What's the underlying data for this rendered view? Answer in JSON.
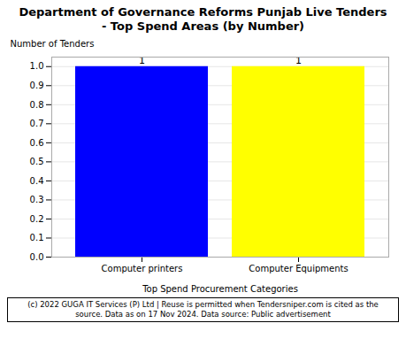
{
  "chart_data": {
    "type": "bar",
    "title": "Department of Governance Reforms Punjab Live Tenders\n - Top Spend Areas (by Number)",
    "categories": [
      "Computer printers",
      "Computer Equipments"
    ],
    "values": [
      1,
      1
    ],
    "colors": [
      "#0000FF",
      "#FFFF00"
    ],
    "xlabel": "Top Spend Procurement Categories",
    "ylabel": "Number of Tenders",
    "ylim": [
      0,
      1.05
    ],
    "yticks": [
      {
        "value": 0.0,
        "label": "0.0"
      },
      0.1,
      0.2,
      0.3,
      0.4,
      0.5,
      0.6,
      0.7,
      0.8,
      0.9,
      {
        "value": 1.0,
        "label": "1.0"
      }
    ],
    "grid": true,
    "data_labels": true,
    "footnote": "(c) 2022 GUGA IT Services (P) Ltd | Reuse is permitted when Tendersniper.com is cited as the\nsource. Data as on 17 Nov 2024. Data source: Public advertisement"
  }
}
